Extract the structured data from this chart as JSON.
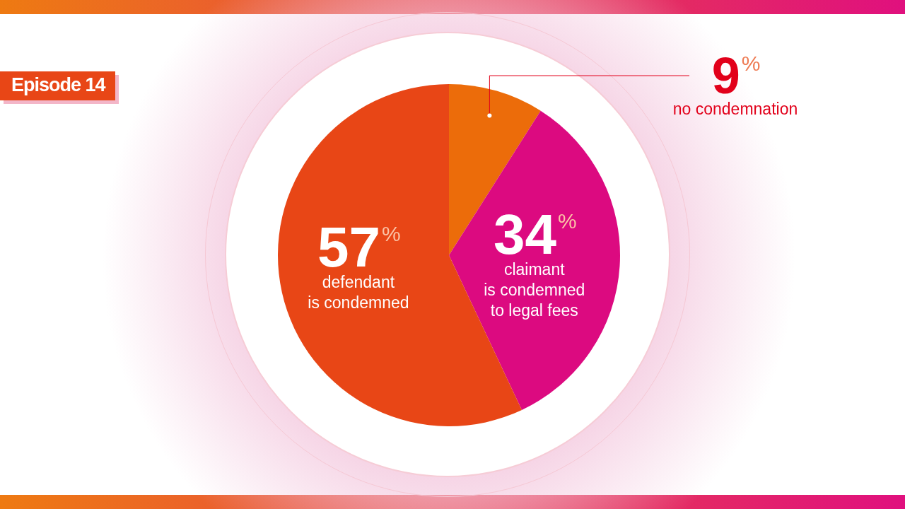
{
  "chart_data": {
    "type": "pie",
    "categories": [
      "no condemnation",
      "claimant\nis condemned\nto legal fees",
      "defendant\nis condemned"
    ],
    "values": [
      9,
      34,
      57
    ],
    "colors": [
      "#ec6c0a",
      "#dc0a80",
      "#e84616"
    ],
    "value_labels": [
      "9%",
      "34%",
      "57%"
    ],
    "annotations": [
      "Episode 14"
    ],
    "legend": false
  }
}
